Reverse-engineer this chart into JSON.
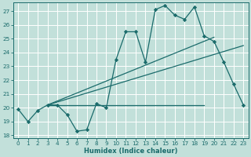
{
  "xlabel": "Humidex (Indice chaleur)",
  "background_color": "#c2e0da",
  "line_color": "#1a6b6b",
  "grid_color": "#b0d8d0",
  "xlim": [
    -0.5,
    23.5
  ],
  "ylim": [
    17.8,
    27.6
  ],
  "yticks": [
    18,
    19,
    20,
    21,
    22,
    23,
    24,
    25,
    26,
    27
  ],
  "xticks": [
    0,
    1,
    2,
    3,
    4,
    5,
    6,
    7,
    8,
    9,
    10,
    11,
    12,
    13,
    14,
    15,
    16,
    17,
    18,
    19,
    20,
    21,
    22,
    23
  ],
  "main_x": [
    0,
    1,
    2,
    3,
    4,
    5,
    6,
    7,
    8,
    9,
    10,
    11,
    12,
    13,
    14,
    15,
    16,
    17,
    18,
    19,
    20,
    21,
    22,
    23
  ],
  "main_y": [
    19.9,
    19.0,
    19.8,
    20.2,
    20.2,
    19.5,
    18.3,
    18.4,
    20.3,
    20.0,
    23.5,
    25.5,
    25.5,
    23.3,
    27.1,
    27.4,
    26.7,
    26.4,
    27.3,
    25.2,
    24.8,
    23.3,
    21.7,
    20.2
  ],
  "trend1_x": [
    3,
    23
  ],
  "trend1_y": [
    20.2,
    24.5
  ],
  "trend2_x": [
    3,
    20
  ],
  "trend2_y": [
    20.2,
    25.1
  ],
  "trend3_x": [
    3,
    19
  ],
  "trend3_y": [
    20.2,
    20.2
  ]
}
